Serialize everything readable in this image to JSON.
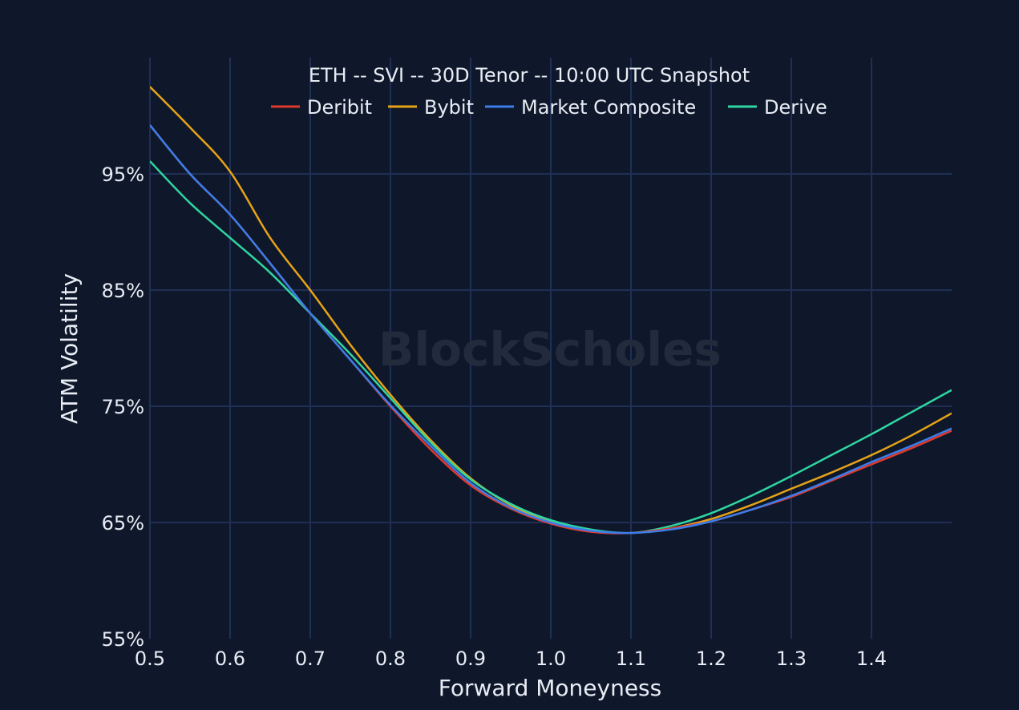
{
  "chart_data": {
    "type": "line",
    "title": "ETH -- SVI -- 30D Tenor -- 10:00 UTC Snapshot",
    "xlabel": "Forward Moneyness",
    "ylabel": "ATM Volatility",
    "watermark": "BlockScholes",
    "xlim": [
      0.5,
      1.5
    ],
    "ylim": [
      55,
      100
    ],
    "x_ticks": [
      "0.5",
      "0.6",
      "0.7",
      "0.8",
      "0.9",
      "1.0",
      "1.1",
      "1.2",
      "1.3",
      "1.4"
    ],
    "x_tick_values": [
      0.5,
      0.6,
      0.7,
      0.8,
      0.9,
      1.0,
      1.1,
      1.2,
      1.3,
      1.4
    ],
    "y_ticks": [
      "55%",
      "65%",
      "75%",
      "85%",
      "95%"
    ],
    "y_tick_values": [
      55,
      65,
      75,
      85,
      95
    ],
    "grid": true,
    "legend_position": "top-center",
    "background": "#0f182a",
    "x": [
      0.5,
      0.55,
      0.6,
      0.65,
      0.7,
      0.75,
      0.8,
      0.85,
      0.9,
      0.95,
      1.0,
      1.05,
      1.1,
      1.15,
      1.2,
      1.25,
      1.3,
      1.35,
      1.4,
      1.45,
      1.5
    ],
    "series": [
      {
        "name": "Deribit",
        "color": "#e03a2c",
        "values": [
          99.2,
          95.0,
          91.5,
          87.3,
          83.0,
          79.0,
          75.0,
          71.3,
          68.2,
          66.2,
          64.9,
          64.2,
          64.1,
          64.5,
          65.1,
          66.1,
          67.2,
          68.6,
          70.0,
          71.4,
          72.9
        ]
      },
      {
        "name": "Bybit",
        "color": "#e6a317",
        "values": [
          102.5,
          99.0,
          95.2,
          89.5,
          85.0,
          80.3,
          76.0,
          72.1,
          68.8,
          66.5,
          65.1,
          64.3,
          64.1,
          64.5,
          65.3,
          66.5,
          67.9,
          69.3,
          70.8,
          72.5,
          74.4
        ]
      },
      {
        "name": "Market Composite",
        "color": "#3b7dea",
        "values": [
          99.2,
          95.0,
          91.5,
          87.3,
          83.0,
          79.0,
          75.1,
          71.6,
          68.4,
          66.3,
          65.0,
          64.3,
          64.1,
          64.4,
          65.1,
          66.1,
          67.3,
          68.7,
          70.2,
          71.6,
          73.1
        ]
      },
      {
        "name": "Derive",
        "color": "#2fd6a2",
        "values": [
          96.1,
          92.5,
          89.5,
          86.5,
          83.0,
          79.5,
          75.7,
          71.9,
          68.7,
          66.6,
          65.2,
          64.4,
          64.1,
          64.7,
          65.8,
          67.3,
          69.0,
          70.8,
          72.6,
          74.5,
          76.4
        ]
      }
    ]
  }
}
